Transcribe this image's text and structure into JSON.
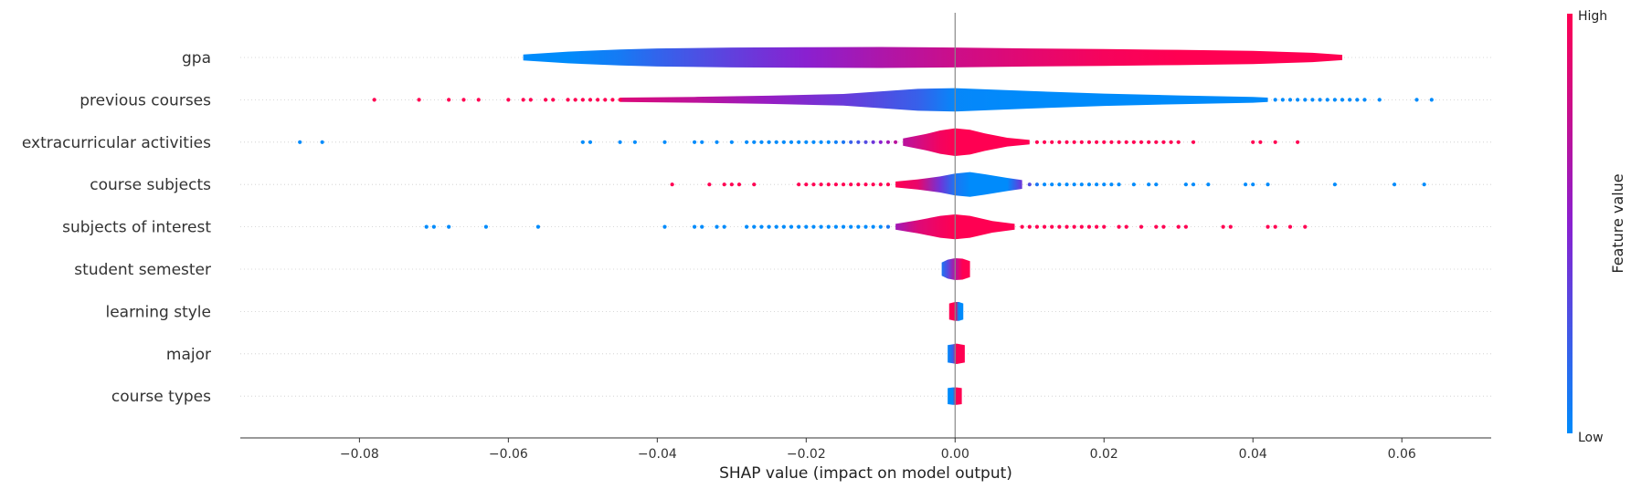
{
  "chart_data": {
    "type": "violin",
    "xlabel": "SHAP value (impact on model output)",
    "xlim": [
      -0.096,
      0.072
    ],
    "xticks": [
      -0.08,
      -0.06,
      -0.04,
      -0.02,
      0.0,
      0.02,
      0.04,
      0.06
    ],
    "xtick_labels": [
      "−0.08",
      "−0.06",
      "−0.04",
      "−0.02",
      "0.00",
      "0.02",
      "0.04",
      "0.06"
    ],
    "colorbar": {
      "label": "Feature value",
      "high_label": "High",
      "low_label": "Low",
      "low_color": "#008bfb",
      "high_color": "#ff0052"
    },
    "features": [
      {
        "name": "gpa",
        "violin": [
          [
            -0.058,
            0.2,
            0
          ],
          [
            -0.052,
            0.4,
            0
          ],
          [
            -0.045,
            0.55,
            0.08
          ],
          [
            -0.04,
            0.62,
            0.18
          ],
          [
            -0.03,
            0.68,
            0.35
          ],
          [
            -0.02,
            0.7,
            0.5
          ],
          [
            -0.01,
            0.72,
            0.65
          ],
          [
            0,
            0.68,
            0.78
          ],
          [
            0.01,
            0.62,
            0.88
          ],
          [
            0.02,
            0.58,
            0.96
          ],
          [
            0.03,
            0.52,
            1
          ],
          [
            0.04,
            0.45,
            1
          ],
          [
            0.048,
            0.32,
            1
          ],
          [
            0.052,
            0.18,
            1
          ]
        ],
        "points": []
      },
      {
        "name": "previous courses",
        "violin": [
          [
            -0.045,
            0.15,
            0.85
          ],
          [
            -0.035,
            0.2,
            0.72
          ],
          [
            -0.025,
            0.28,
            0.55
          ],
          [
            -0.015,
            0.4,
            0.38
          ],
          [
            -0.005,
            0.75,
            0.2
          ],
          [
            0,
            0.8,
            0.02
          ],
          [
            0.01,
            0.6,
            0
          ],
          [
            0.02,
            0.42,
            0
          ],
          [
            0.03,
            0.3,
            0
          ],
          [
            0.04,
            0.2,
            0
          ],
          [
            0.042,
            0.15,
            0
          ]
        ],
        "points": [
          [
            -0.078,
            1
          ],
          [
            -0.072,
            1
          ],
          [
            -0.068,
            1
          ],
          [
            -0.066,
            1
          ],
          [
            -0.064,
            1
          ],
          [
            -0.06,
            1
          ],
          [
            -0.058,
            1
          ],
          [
            -0.057,
            1
          ],
          [
            -0.055,
            1
          ],
          [
            -0.054,
            1
          ],
          [
            -0.052,
            1
          ],
          [
            -0.051,
            1
          ],
          [
            -0.05,
            1
          ],
          [
            -0.049,
            1
          ],
          [
            -0.048,
            1
          ],
          [
            -0.047,
            1
          ],
          [
            -0.046,
            1
          ],
          [
            -0.045,
            1
          ],
          [
            0.043,
            0
          ],
          [
            0.044,
            0
          ],
          [
            0.045,
            0
          ],
          [
            0.046,
            0
          ],
          [
            0.047,
            0
          ],
          [
            0.048,
            0
          ],
          [
            0.049,
            0
          ],
          [
            0.05,
            0
          ],
          [
            0.051,
            0
          ],
          [
            0.052,
            0
          ],
          [
            0.053,
            0
          ],
          [
            0.054,
            0
          ],
          [
            0.055,
            0
          ],
          [
            0.057,
            0
          ],
          [
            0.062,
            0
          ],
          [
            0.064,
            0
          ]
        ]
      },
      {
        "name": "extracurricular activities",
        "violin": [
          [
            -0.007,
            0.25,
            0.7
          ],
          [
            -0.004,
            0.55,
            0.85
          ],
          [
            -0.002,
            0.8,
            0.95
          ],
          [
            0,
            0.95,
            1
          ],
          [
            0.002,
            0.85,
            1
          ],
          [
            0.004,
            0.6,
            1
          ],
          [
            0.007,
            0.3,
            1
          ],
          [
            0.01,
            0.15,
            1
          ]
        ],
        "points": [
          [
            -0.088,
            0
          ],
          [
            -0.085,
            0
          ],
          [
            -0.05,
            0
          ],
          [
            -0.049,
            0
          ],
          [
            -0.045,
            0
          ],
          [
            -0.043,
            0
          ],
          [
            -0.039,
            0
          ],
          [
            -0.035,
            0
          ],
          [
            -0.034,
            0
          ],
          [
            -0.032,
            0
          ],
          [
            -0.03,
            0
          ],
          [
            -0.028,
            0
          ],
          [
            -0.027,
            0
          ],
          [
            -0.026,
            0
          ],
          [
            -0.025,
            0
          ],
          [
            -0.024,
            0
          ],
          [
            -0.023,
            0
          ],
          [
            -0.022,
            0
          ],
          [
            -0.021,
            0
          ],
          [
            -0.02,
            0
          ],
          [
            -0.019,
            0
          ],
          [
            -0.018,
            0
          ],
          [
            -0.017,
            0
          ],
          [
            -0.016,
            0.05
          ],
          [
            -0.015,
            0.1
          ],
          [
            -0.014,
            0.2
          ],
          [
            -0.013,
            0.25
          ],
          [
            -0.012,
            0.3
          ],
          [
            -0.011,
            0.4
          ],
          [
            -0.01,
            0.5
          ],
          [
            -0.009,
            0.6
          ],
          [
            -0.008,
            0.7
          ],
          [
            0.011,
            1
          ],
          [
            0.012,
            1
          ],
          [
            0.013,
            1
          ],
          [
            0.014,
            1
          ],
          [
            0.015,
            1
          ],
          [
            0.016,
            1
          ],
          [
            0.017,
            1
          ],
          [
            0.018,
            1
          ],
          [
            0.019,
            1
          ],
          [
            0.02,
            1
          ],
          [
            0.021,
            1
          ],
          [
            0.022,
            1
          ],
          [
            0.023,
            1
          ],
          [
            0.024,
            1
          ],
          [
            0.025,
            1
          ],
          [
            0.026,
            1
          ],
          [
            0.027,
            1
          ],
          [
            0.028,
            1
          ],
          [
            0.029,
            1
          ],
          [
            0.03,
            1
          ],
          [
            0.032,
            1
          ],
          [
            0.04,
            1
          ],
          [
            0.041,
            1
          ],
          [
            0.043,
            1
          ],
          [
            0.046,
            1
          ]
        ]
      },
      {
        "name": "course subjects",
        "violin": [
          [
            -0.008,
            0.2,
            1
          ],
          [
            -0.005,
            0.35,
            0.9
          ],
          [
            -0.002,
            0.55,
            0.4
          ],
          [
            0,
            0.75,
            0.1
          ],
          [
            0.002,
            0.85,
            0
          ],
          [
            0.004,
            0.7,
            0
          ],
          [
            0.007,
            0.45,
            0
          ],
          [
            0.009,
            0.3,
            0.4
          ]
        ],
        "points": [
          [
            -0.038,
            1
          ],
          [
            -0.033,
            1
          ],
          [
            -0.031,
            1
          ],
          [
            -0.03,
            1
          ],
          [
            -0.029,
            1
          ],
          [
            -0.027,
            1
          ],
          [
            -0.021,
            1
          ],
          [
            -0.02,
            1
          ],
          [
            -0.019,
            1
          ],
          [
            -0.018,
            1
          ],
          [
            -0.017,
            1
          ],
          [
            -0.016,
            1
          ],
          [
            -0.015,
            1
          ],
          [
            -0.014,
            1
          ],
          [
            -0.013,
            1
          ],
          [
            -0.012,
            1
          ],
          [
            -0.011,
            1
          ],
          [
            -0.01,
            1
          ],
          [
            -0.009,
            1
          ],
          [
            0.01,
            0.3
          ],
          [
            0.011,
            0.1
          ],
          [
            0.012,
            0
          ],
          [
            0.013,
            0
          ],
          [
            0.014,
            0
          ],
          [
            0.015,
            0
          ],
          [
            0.016,
            0
          ],
          [
            0.017,
            0
          ],
          [
            0.018,
            0
          ],
          [
            0.019,
            0
          ],
          [
            0.02,
            0
          ],
          [
            0.021,
            0
          ],
          [
            0.022,
            0
          ],
          [
            0.024,
            0
          ],
          [
            0.026,
            0
          ],
          [
            0.027,
            0
          ],
          [
            0.031,
            0
          ],
          [
            0.032,
            0
          ],
          [
            0.034,
            0
          ],
          [
            0.039,
            0
          ],
          [
            0.04,
            0
          ],
          [
            0.042,
            0
          ],
          [
            0.051,
            0
          ],
          [
            0.059,
            0
          ],
          [
            0.063,
            0
          ]
        ]
      },
      {
        "name": "subjects of interest",
        "violin": [
          [
            -0.008,
            0.2,
            0.6
          ],
          [
            -0.005,
            0.45,
            0.85
          ],
          [
            -0.002,
            0.75,
            0.95
          ],
          [
            0,
            0.85,
            1
          ],
          [
            0.002,
            0.75,
            1
          ],
          [
            0.005,
            0.4,
            1
          ],
          [
            0.008,
            0.2,
            1
          ]
        ],
        "points": [
          [
            -0.071,
            0
          ],
          [
            -0.07,
            0
          ],
          [
            -0.068,
            0
          ],
          [
            -0.063,
            0
          ],
          [
            -0.056,
            0
          ],
          [
            -0.039,
            0
          ],
          [
            -0.035,
            0
          ],
          [
            -0.034,
            0
          ],
          [
            -0.032,
            0
          ],
          [
            -0.031,
            0
          ],
          [
            -0.028,
            0
          ],
          [
            -0.027,
            0
          ],
          [
            -0.026,
            0
          ],
          [
            -0.025,
            0
          ],
          [
            -0.024,
            0
          ],
          [
            -0.023,
            0
          ],
          [
            -0.022,
            0
          ],
          [
            -0.021,
            0
          ],
          [
            -0.02,
            0
          ],
          [
            -0.019,
            0
          ],
          [
            -0.018,
            0
          ],
          [
            -0.017,
            0
          ],
          [
            -0.016,
            0
          ],
          [
            -0.015,
            0
          ],
          [
            -0.014,
            0
          ],
          [
            -0.013,
            0
          ],
          [
            -0.012,
            0
          ],
          [
            -0.011,
            0
          ],
          [
            -0.01,
            0
          ],
          [
            -0.009,
            0.1
          ],
          [
            0.009,
            1
          ],
          [
            0.01,
            1
          ],
          [
            0.011,
            1
          ],
          [
            0.012,
            1
          ],
          [
            0.013,
            1
          ],
          [
            0.014,
            1
          ],
          [
            0.015,
            1
          ],
          [
            0.016,
            1
          ],
          [
            0.017,
            1
          ],
          [
            0.018,
            1
          ],
          [
            0.019,
            1
          ],
          [
            0.02,
            1
          ],
          [
            0.022,
            1
          ],
          [
            0.023,
            1
          ],
          [
            0.025,
            1
          ],
          [
            0.027,
            1
          ],
          [
            0.028,
            1
          ],
          [
            0.03,
            1
          ],
          [
            0.031,
            1
          ],
          [
            0.036,
            1
          ],
          [
            0.037,
            1
          ],
          [
            0.042,
            1
          ],
          [
            0.043,
            1
          ],
          [
            0.045,
            1
          ],
          [
            0.047,
            1
          ]
        ]
      },
      {
        "name": "student semester",
        "violin": [
          [
            -0.0018,
            0.45,
            0.1
          ],
          [
            -0.001,
            0.65,
            0.3
          ],
          [
            0,
            0.75,
            0.7
          ],
          [
            0.001,
            0.72,
            1
          ],
          [
            0.002,
            0.55,
            1
          ]
        ],
        "points": []
      },
      {
        "name": "learning style",
        "violin": [
          [
            -0.0008,
            0.55,
            1
          ],
          [
            0,
            0.65,
            1
          ],
          [
            0.0005,
            0.65,
            0
          ],
          [
            0.0011,
            0.55,
            0
          ]
        ],
        "points": []
      },
      {
        "name": "major",
        "violin": [
          [
            -0.001,
            0.6,
            0
          ],
          [
            -0.0003,
            0.65,
            0.2
          ],
          [
            0.0002,
            0.7,
            1
          ],
          [
            0.0013,
            0.6,
            1
          ]
        ],
        "points": []
      },
      {
        "name": "course types",
        "violin": [
          [
            -0.001,
            0.55,
            0
          ],
          [
            -0.0003,
            0.6,
            0
          ],
          [
            0.0002,
            0.6,
            1
          ],
          [
            0.0009,
            0.55,
            1
          ]
        ],
        "points": []
      }
    ]
  }
}
